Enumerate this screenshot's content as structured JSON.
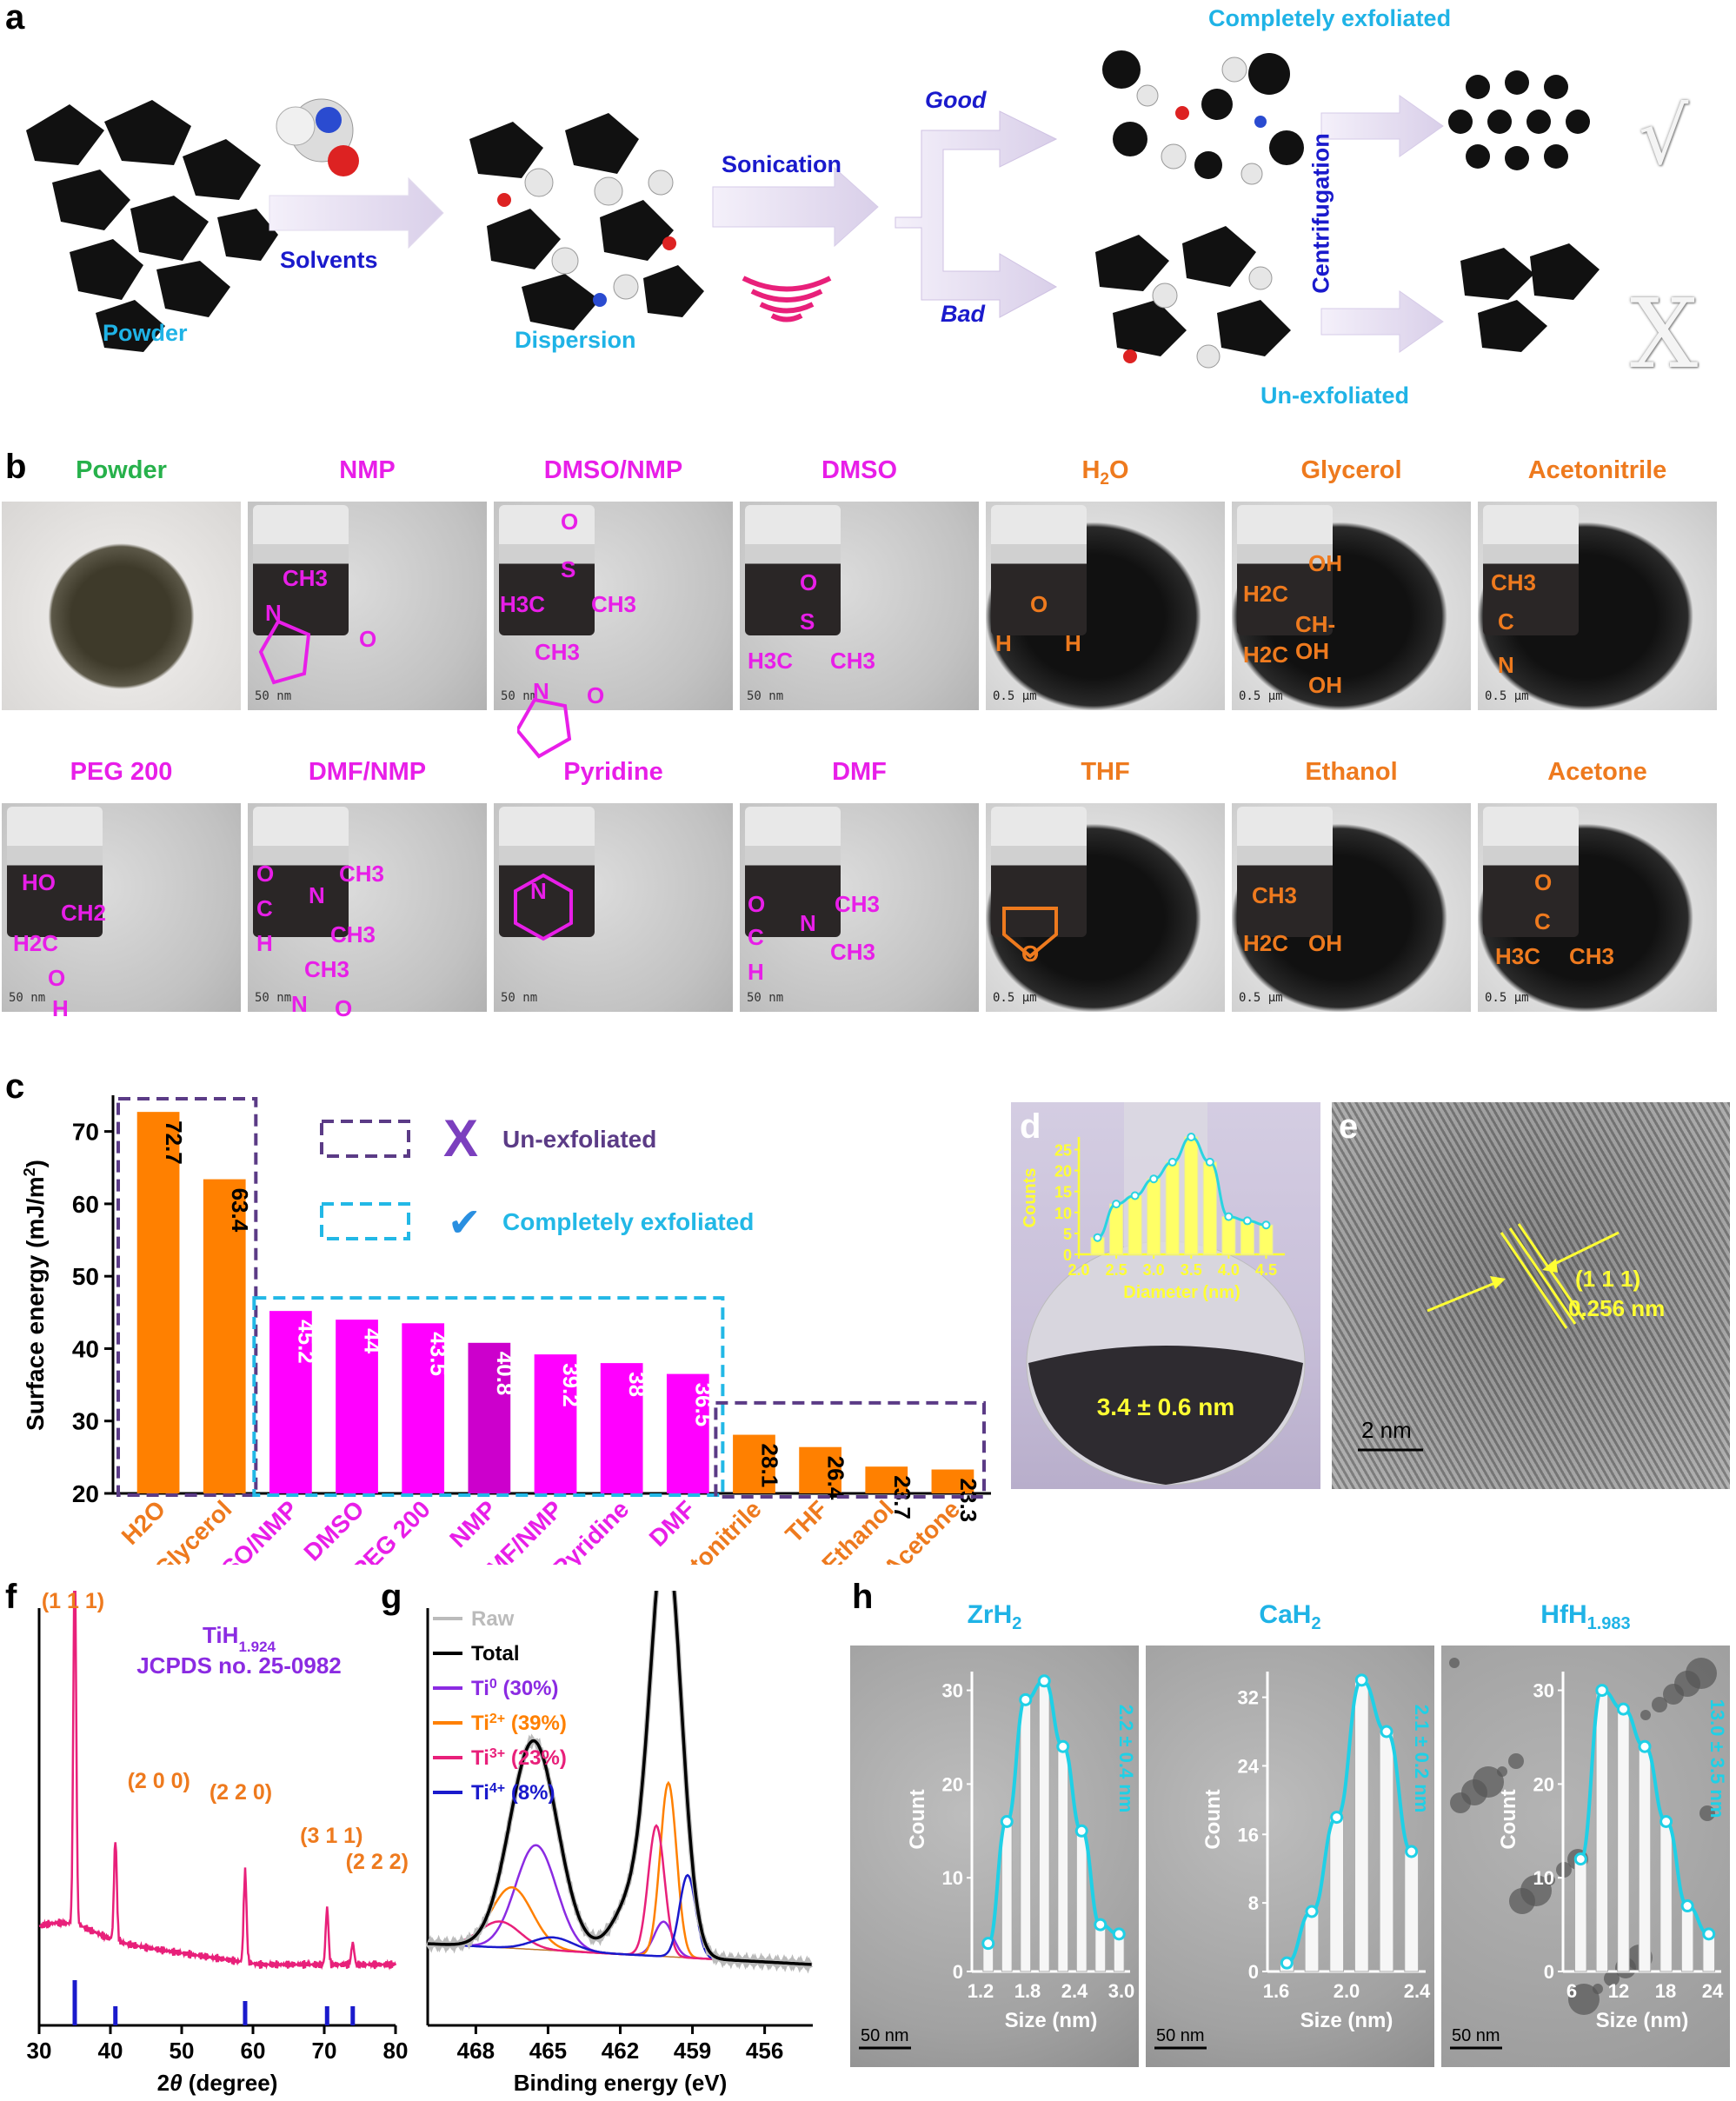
{
  "panel_labels": {
    "a": "a",
    "b": "b",
    "c": "c",
    "d": "d",
    "e": "e",
    "f": "f",
    "g": "g",
    "h": "h"
  },
  "scheme": {
    "powder": "Powder",
    "solvents": "Solvents",
    "dispersion": "Dispersion",
    "sonication": "Sonication",
    "good": "Good",
    "bad": "Bad",
    "completely_exfoliated": "Completely exfoliated",
    "un_exfoliated": "Un-exfoliated",
    "centrifugation": "Centrifugation",
    "check": "√",
    "cross": "X"
  },
  "micrographs_row1": [
    {
      "title": "Powder",
      "color": "#27b14b",
      "scale": ""
    },
    {
      "title": "NMP",
      "color": "#e81ee8",
      "scale": "50 nm"
    },
    {
      "title": "DMSO/NMP",
      "color": "#e81ee8",
      "scale": "50 nm"
    },
    {
      "title": "DMSO",
      "color": "#e81ee8",
      "scale": "50 nm"
    },
    {
      "title": "H",
      "sub": "2",
      "tail": "O",
      "color": "#ee7a1e",
      "scale": "0.5 μm"
    },
    {
      "title": "Glycerol",
      "color": "#ee7a1e",
      "scale": "0.5 μm"
    },
    {
      "title": "Acetonitrile",
      "color": "#ee7a1e",
      "scale": "0.5 μm"
    }
  ],
  "micrographs_row2": [
    {
      "title": "PEG 200",
      "color": "#e81ee8",
      "scale": "50 nm"
    },
    {
      "title": "DMF/NMP",
      "color": "#e81ee8",
      "scale": "50 nm"
    },
    {
      "title": "Pyridine",
      "color": "#e81ee8",
      "scale": "50 nm"
    },
    {
      "title": "DMF",
      "color": "#e81ee8",
      "scale": "50 nm"
    },
    {
      "title": "THF",
      "color": "#ee7a1e",
      "scale": "0.5 μm"
    },
    {
      "title": "Ethanol",
      "color": "#ee7a1e",
      "scale": "0.5 μm"
    },
    {
      "title": "Acetone",
      "color": "#ee7a1e",
      "scale": "0.5 μm"
    }
  ],
  "formulas": {
    "nmp": [
      "CH3",
      "N",
      "O"
    ],
    "dmso_nmp": [
      "O",
      "S",
      "H3C",
      "CH3",
      "CH3",
      "N",
      "O"
    ],
    "dmso": [
      "O",
      "S",
      "H3C",
      "CH3"
    ],
    "h2o": [
      "O",
      "H",
      "H"
    ],
    "glycerol": [
      "OH",
      "H2C",
      "CH-OH",
      "H2C",
      "OH"
    ],
    "acetonitrile": [
      "CH3",
      "C",
      "N"
    ],
    "peg": [
      "HO",
      "CH2",
      "H2C",
      "O",
      "H"
    ],
    "dmf_nmp": [
      "O",
      "C",
      "N",
      "CH3",
      "H",
      "CH3",
      "CH3",
      "N",
      "O"
    ],
    "pyridine": [
      "N"
    ],
    "dmf": [
      "O",
      "C",
      "N",
      "CH3",
      "H",
      "CH3"
    ],
    "thf": [
      "O"
    ],
    "ethanol": [
      "CH3",
      "H2C",
      "OH"
    ],
    "acetone": [
      "O",
      "C",
      "H3C",
      "CH3"
    ]
  },
  "chart_data": [
    {
      "panel": "c",
      "type": "bar",
      "categories": [
        "H2O",
        "Glycerol",
        "DMSO/NMP",
        "DMSO",
        "PEG 200",
        "NMP",
        "DMF/NMP",
        "Pyridine",
        "DMF",
        "Acetonitrile",
        "THF",
        "Ethanol",
        "Acetone"
      ],
      "values": [
        72.7,
        63.4,
        45.2,
        44,
        43.5,
        40.8,
        39.2,
        38,
        36.5,
        28.1,
        26.4,
        23.7,
        23.3
      ],
      "value_labels": [
        "72.7",
        "63.4",
        "45.2",
        "44",
        "43.5",
        "40.8",
        "39.2",
        "38",
        "36.5",
        "28.1",
        "26.4",
        "23.7",
        "23.3"
      ],
      "colors": [
        "#ff8000",
        "#ff8000",
        "#ff00ff",
        "#ff00ff",
        "#ff00ff",
        "#cc00cc",
        "#ff00ff",
        "#ff00ff",
        "#ff00ff",
        "#ff8000",
        "#ff8000",
        "#ff8000",
        "#ff8000"
      ],
      "label_colors": [
        "#ee7a1e",
        "#ee7a1e",
        "#e81ee8",
        "#e81ee8",
        "#e81ee8",
        "#e81ee8",
        "#e81ee8",
        "#e81ee8",
        "#e81ee8",
        "#ee7a1e",
        "#ee7a1e",
        "#ee7a1e",
        "#ee7a1e"
      ],
      "ylabel": "Surface energy (mJ/m",
      "ylabel_sup": "2",
      "ylabel_tail": ")",
      "ylim": [
        20,
        75
      ],
      "yticks": [
        20,
        30,
        40,
        50,
        60,
        70
      ],
      "legend": [
        {
          "text": "Un-exfoliated",
          "box": "#5b3b86",
          "mark": "X"
        },
        {
          "text": "Completely exfoliated",
          "box": "#22b8e6",
          "mark": "✔"
        }
      ]
    },
    {
      "panel": "d",
      "type": "bar",
      "x": [
        2.25,
        2.5,
        2.75,
        3.0,
        3.25,
        3.5,
        3.75,
        4.0,
        4.25,
        4.5
      ],
      "values": [
        4,
        12,
        14,
        18,
        22,
        28,
        22,
        9,
        8,
        7
      ],
      "xlabel": "Diameter (nm)",
      "ylabel": "Counts",
      "xticks": [
        "2.0",
        "2.5",
        "3.0",
        "3.5",
        "4.0",
        "4.5"
      ],
      "yticks": [
        "0",
        "5",
        "10",
        "15",
        "20",
        "25"
      ],
      "ylim": [
        0,
        28
      ],
      "annotation": "3.4 ± 0.6 nm"
    },
    {
      "panel": "f",
      "type": "line",
      "xlabel_pre": "2",
      "xlabel_theta": "θ",
      "xlabel_post": " (degree)",
      "xticks": [
        "30",
        "40",
        "50",
        "60",
        "70",
        "80"
      ],
      "xlim": [
        30,
        80
      ],
      "peaks": [
        {
          "x": 35,
          "label": "(1 1 1)"
        },
        {
          "x": 40.7,
          "label": "(2 0 0)"
        },
        {
          "x": 58.9,
          "label": "(2 2 0)"
        },
        {
          "x": 70.4,
          "label": "(3 1 1)"
        },
        {
          "x": 74.0,
          "label": "(2 2 2)"
        }
      ],
      "ref_lines": [
        35,
        40.7,
        58.9,
        70.4,
        74.0
      ],
      "compound": "TiH",
      "compound_sub": "1.924",
      "jcpds": "JCPDS no. 25-0982"
    },
    {
      "panel": "g",
      "type": "line",
      "xlabel": "Binding energy (eV)",
      "xticks": [
        "468",
        "465",
        "462",
        "459",
        "456"
      ],
      "xlim": [
        470,
        454
      ],
      "legend": [
        {
          "name": "Raw",
          "color": "#bbbbbb"
        },
        {
          "name": "Total",
          "color": "#000000"
        },
        {
          "name": "Ti",
          "sup": "0",
          "tail": " (30%)",
          "color": "#8b2be2"
        },
        {
          "name": "Ti",
          "sup": "2+",
          "tail": " (39%)",
          "color": "#ff8000"
        },
        {
          "name": "Ti",
          "sup": "3+",
          "tail": " (23%)",
          "color": "#e8207a"
        },
        {
          "name": "Ti",
          "sup": "4+",
          "tail": " (8%)",
          "color": "#1a1acc"
        }
      ]
    },
    {
      "panel": "h",
      "type": "bar",
      "subpanels": [
        {
          "title": "ZrH",
          "sub": "2",
          "xlabel": "Size (nm)",
          "ylabel": "Count",
          "xticks": [
            "1.2",
            "1.8",
            "2.4",
            "3.0"
          ],
          "yticks": [
            "0",
            "10",
            "20",
            "30"
          ],
          "values": [
            3,
            16,
            29,
            31,
            24,
            15,
            5,
            4
          ],
          "ymax": 32,
          "annotation": "2.2 ± 0.4 nm",
          "scale": "50 nm"
        },
        {
          "title": "CaH",
          "sub": "2",
          "xlabel": "Size (nm)",
          "ylabel": "Count",
          "xticks": [
            "1.6",
            "2.0",
            "2.4"
          ],
          "yticks": [
            "0",
            "8",
            "16",
            "24",
            "32"
          ],
          "values": [
            1,
            7,
            18,
            34,
            28,
            14
          ],
          "ymax": 35,
          "annotation": "2.1 ± 0.2 nm",
          "scale": "50 nm"
        },
        {
          "title": "HfH",
          "sub": "1.983",
          "xlabel": "Size (nm)",
          "ylabel": "Count",
          "xticks": [
            "6",
            "12",
            "18",
            "24"
          ],
          "yticks": [
            "0",
            "10",
            "20",
            "30"
          ],
          "values": [
            12,
            30,
            28,
            24,
            16,
            7,
            4
          ],
          "ymax": 32,
          "annotation": "13.0 ± 3.5 nm",
          "scale": "50 nm"
        }
      ]
    }
  ],
  "panel_e": {
    "plane": "(1 1 1)",
    "spacing": "0.256 nm",
    "scale": "2 nm"
  }
}
